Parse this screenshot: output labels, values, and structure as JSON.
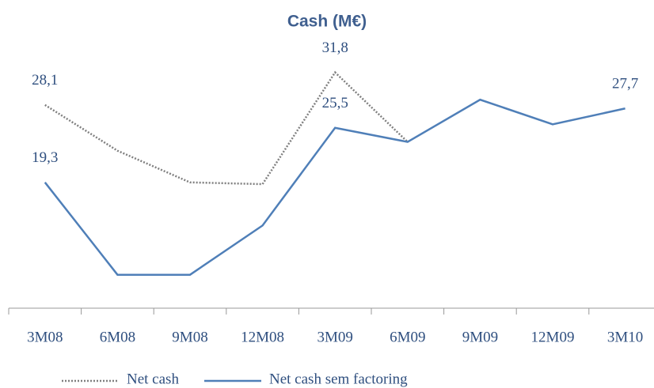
{
  "chart_data": {
    "type": "line",
    "title": "Cash (M€)",
    "categories": [
      "3M08",
      "6M08",
      "9M08",
      "12M08",
      "3M09",
      "6M09",
      "9M09",
      "12M09",
      "3M10"
    ],
    "series": [
      {
        "name": "Net cash",
        "color": "#808080",
        "dash": "dotted",
        "values": [
          28.1,
          22.9,
          19.3,
          19.1,
          31.8,
          23.9,
          null,
          null,
          null
        ],
        "value_labels": [
          "28,1",
          null,
          null,
          null,
          "31,8",
          null,
          null,
          null,
          null
        ]
      },
      {
        "name": "Net cash sem factoring",
        "color": "#4f7fb8",
        "dash": "solid",
        "values": [
          19.3,
          8.8,
          8.8,
          14.4,
          25.5,
          23.9,
          28.7,
          25.9,
          27.7
        ],
        "value_labels": [
          "19,3",
          null,
          null,
          null,
          "25,5",
          null,
          null,
          null,
          "27,7"
        ]
      }
    ],
    "ylim": [
      5,
      35
    ],
    "legend": "bottom"
  }
}
